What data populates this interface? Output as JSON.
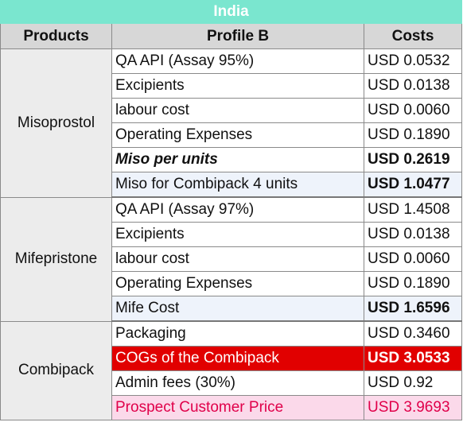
{
  "title": "India",
  "headers": {
    "products": "Products",
    "profile": "Profile B",
    "costs": "Costs"
  },
  "groups": [
    {
      "product": "Misoprostol",
      "rows": [
        {
          "item": "QA API (Assay 95%)",
          "cost": "USD 0.0532"
        },
        {
          "item": "Excipients",
          "cost": "USD 0.0138"
        },
        {
          "item": "labour cost",
          "cost": "USD 0.0060"
        },
        {
          "item": "Operating Expenses",
          "cost": "USD 0.1890"
        },
        {
          "item": "Miso per units",
          "cost": "USD 0.2619"
        },
        {
          "item": "Miso for Combipack  4 units",
          "cost": "USD 1.0477"
        }
      ]
    },
    {
      "product": "Mifepristone",
      "rows": [
        {
          "item": "QA API (Assay 97%)",
          "cost": "USD 1.4508"
        },
        {
          "item": "Excipients",
          "cost": "USD 0.0138"
        },
        {
          "item": "labour cost",
          "cost": "USD 0.0060"
        },
        {
          "item": "Operating Expenses",
          "cost": "USD 0.1890"
        },
        {
          "item": "Mife Cost",
          "cost": "USD 1.6596"
        }
      ]
    },
    {
      "product": "Combipack",
      "rows": [
        {
          "item": "Packaging",
          "cost": "USD 0.3460"
        },
        {
          "item": "COGs of the Combipack",
          "cost": "USD 3.0533"
        },
        {
          "item": "Admin fees (30%)",
          "cost": "USD 0.92"
        },
        {
          "item": "Prospect Customer Price",
          "cost": "USD 3.9693"
        }
      ]
    }
  ],
  "colors": {
    "title_bg": "#7ae6cf",
    "header_bg": "#d7d7d7",
    "product_bg": "#ececec",
    "subtotal_bg": "#eef3fb",
    "cogs_bg": "#e10000",
    "price_bg": "#fbd9ea",
    "price_text": "#e0004a"
  }
}
